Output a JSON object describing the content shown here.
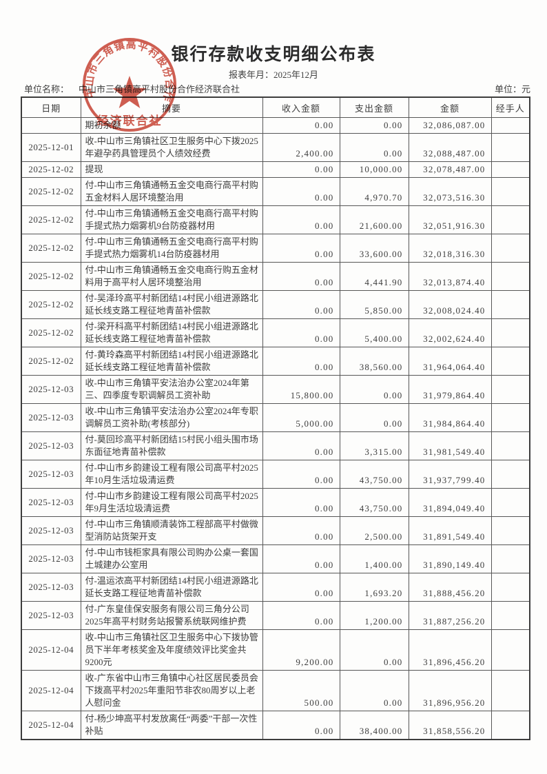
{
  "header": {
    "title": "银行存款收支明细公布表",
    "period_label": "报表年月：",
    "period_value": "2025年12月",
    "unit_name_label": "单位名称：",
    "unit_name": "中山市三角镇高平村股份合作经济联合社",
    "unit_label": "单位：",
    "unit_value": "元"
  },
  "stamp": {
    "ring_text": "中山市三角镇高平村股份合作",
    "bottom_text": "经济联合社",
    "color": "#c63b2c"
  },
  "table": {
    "columns": [
      "日期",
      "摘要",
      "收入金额",
      "支出金额",
      "金额",
      "经手人"
    ],
    "rows": [
      {
        "date": "",
        "summary": "期初余额",
        "income": "0.00",
        "expense": "0.00",
        "balance": "32,086,087.00",
        "handler": "",
        "lines": 1
      },
      {
        "date": "2025-12-01",
        "summary": "收-中山市三角镇社区卫生服务中心下拨2025年避孕药具管理员个人绩效经费",
        "income": "2,400.00",
        "expense": "0.00",
        "balance": "32,088,487.00",
        "handler": "",
        "lines": 2
      },
      {
        "date": "2025-12-02",
        "summary": "提现",
        "income": "0.00",
        "expense": "10,000.00",
        "balance": "32,078,487.00",
        "handler": "",
        "lines": 1
      },
      {
        "date": "2025-12-02",
        "summary": "付-中山市三角镇通畅五金交电商行高平村购五金材料人居环境整治用",
        "income": "0.00",
        "expense": "4,970.70",
        "balance": "32,073,516.30",
        "handler": "",
        "lines": 2
      },
      {
        "date": "2025-12-02",
        "summary": "付-中山市三角镇通畅五金交电商行高平村购手提式热力烟雾机9台防疫器材用",
        "income": "0.00",
        "expense": "21,600.00",
        "balance": "32,051,916.30",
        "handler": "",
        "lines": 2
      },
      {
        "date": "2025-12-02",
        "summary": "付-中山市三角镇通畅五金交电商行高平村购手提式热力烟雾机14台防疫器材用",
        "income": "0.00",
        "expense": "33,600.00",
        "balance": "32,018,316.30",
        "handler": "",
        "lines": 2
      },
      {
        "date": "2025-12-02",
        "summary": "付-中山市三角镇通畅五金交电商行购五金材料用于高平村人居环境整治用",
        "income": "0.00",
        "expense": "4,441.90",
        "balance": "32,013,874.40",
        "handler": "",
        "lines": 2
      },
      {
        "date": "2025-12-02",
        "summary": "付-吴泽玲高平村新团结14村民小组进源路北延长线支路工程征地青苗补偿款",
        "income": "0.00",
        "expense": "5,850.00",
        "balance": "32,008,024.40",
        "handler": "",
        "lines": 2
      },
      {
        "date": "2025-12-02",
        "summary": "付-梁开科高平村新团结14村民小组进源路北延长线支路工程征地青苗补偿款",
        "income": "0.00",
        "expense": "5,400.00",
        "balance": "32,002,624.40",
        "handler": "",
        "lines": 2
      },
      {
        "date": "2025-12-02",
        "summary": "付-黄玲森高平村新团结14村民小组进源路北延长线支路工程征地青苗补偿款",
        "income": "0.00",
        "expense": "38,560.00",
        "balance": "31,964,064.40",
        "handler": "",
        "lines": 2
      },
      {
        "date": "2025-12-03",
        "summary": "收-中山市三角镇平安法治办公室2024年第三、四季度专职调解员工资补助",
        "income": "15,800.00",
        "expense": "0.00",
        "balance": "31,979,864.40",
        "handler": "",
        "lines": 2
      },
      {
        "date": "2025-12-03",
        "summary": "收-中山市三角镇平安法治办公室2024年专职调解员工资补助(考核部分)",
        "income": "5,000.00",
        "expense": "0.00",
        "balance": "31,984,864.40",
        "handler": "",
        "lines": 2
      },
      {
        "date": "2025-12-03",
        "summary": "付-莫回珍高平村新团结15村民小组头围市场东面征地青苗补偿款",
        "income": "0.00",
        "expense": "3,315.00",
        "balance": "31,981,549.40",
        "handler": "",
        "lines": 2
      },
      {
        "date": "2025-12-03",
        "summary": "付-中山市乡韵建设工程有限公司高平村2025年10月生活垃圾清运费",
        "income": "0.00",
        "expense": "43,750.00",
        "balance": "31,937,799.40",
        "handler": "",
        "lines": 2
      },
      {
        "date": "2025-12-03",
        "summary": "付-中山市乡韵建设工程有限公司高平村2025年9月生活垃圾清运费",
        "income": "0.00",
        "expense": "43,750.00",
        "balance": "31,894,049.40",
        "handler": "",
        "lines": 2
      },
      {
        "date": "2025-12-03",
        "summary": "付-中山市三角镇顺清装饰工程部高平村做微型消防站货架开支",
        "income": "0.00",
        "expense": "2,500.00",
        "balance": "31,891,549.40",
        "handler": "",
        "lines": 2
      },
      {
        "date": "2025-12-03",
        "summary": "付-中山市钱柜家具有限公司购办公桌一套国土城建办公室用",
        "income": "0.00",
        "expense": "1,400.00",
        "balance": "31,890,149.40",
        "handler": "",
        "lines": 2
      },
      {
        "date": "2025-12-03",
        "summary": "付-温运浓高平村新团结14村民小组进源路北延长支路工程征地青苗补偿款",
        "income": "0.00",
        "expense": "1,693.20",
        "balance": "31,888,456.20",
        "handler": "",
        "lines": 2
      },
      {
        "date": "2025-12-03",
        "summary": "付-广东皇佳保安服务有限公司三角分公司2025年高平村财务站报警系统联网维护费",
        "income": "0.00",
        "expense": "1,200.00",
        "balance": "31,887,256.20",
        "handler": "",
        "lines": 2
      },
      {
        "date": "2025-12-04",
        "summary": "收-中山市三角镇社区卫生服务中心下拨协管员下半年考核奖金及年度绩效评比奖金共9200元",
        "income": "9,200.00",
        "expense": "0.00",
        "balance": "31,896,456.20",
        "handler": "",
        "lines": 3
      },
      {
        "date": "2025-12-04",
        "summary": "收-广东省中山市三角镇中心社区居民委员会下拨高平村2025年重阳节非农80周岁以上老人慰问金",
        "income": "500.00",
        "expense": "0.00",
        "balance": "31,896,956.20",
        "handler": "",
        "lines": 3
      },
      {
        "date": "2025-12-04",
        "summary": "付-杨少坤高平村发放离任“两委”干部一次性补贴",
        "income": "0.00",
        "expense": "38,400.00",
        "balance": "31,858,556.20",
        "handler": "",
        "lines": 2
      }
    ]
  }
}
